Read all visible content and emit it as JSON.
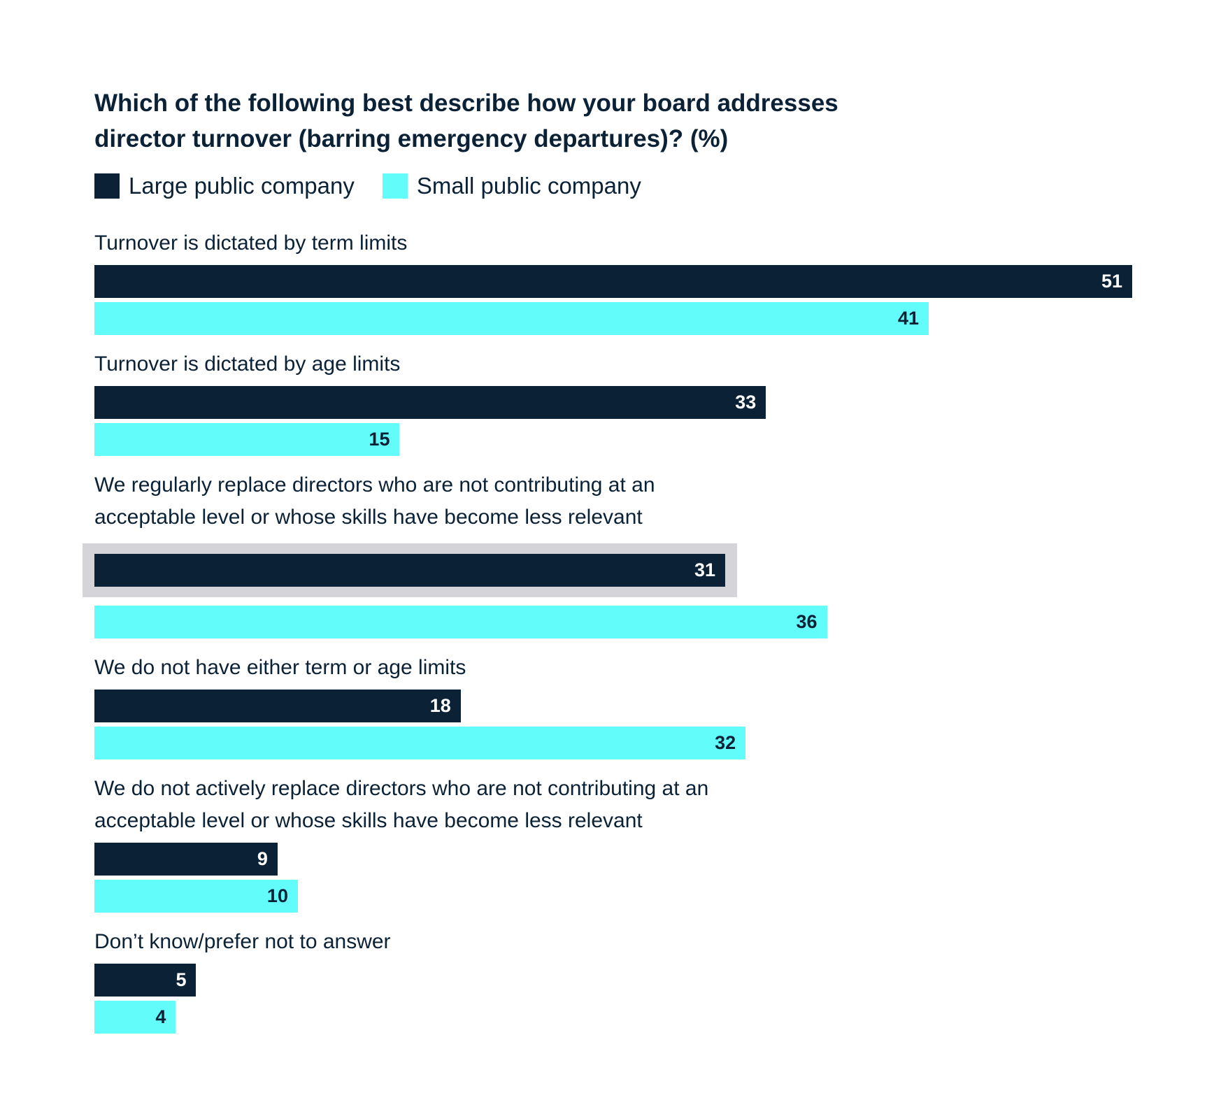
{
  "chart_data": {
    "type": "bar",
    "orientation": "horizontal",
    "title": "Which of the following best describe how your board addresses director turnover (barring emergency departures)? (%)",
    "title_lines": [
      "Which of the following best describe how your board addresses",
      "director turnover (barring emergency departures)? (%)"
    ],
    "xlim": [
      0,
      51
    ],
    "grid": false,
    "legend_position": "top-left",
    "categories": [
      "Turnover is dictated by term limits",
      "Turnover is dictated by age limits",
      "We regularly replace directors who are not contributing at an acceptable level or whose skills have become less relevant",
      "We do not have either term or age limits",
      "We do not actively replace directors who are not contributing at an acceptable level or whose skills have become less relevant",
      "Don’t know/prefer not to answer"
    ],
    "category_lines": [
      [
        "Turnover is dictated by term limits"
      ],
      [
        "Turnover is dictated by age limits"
      ],
      [
        "We regularly replace directors who are not contributing at an",
        "acceptable level or whose skills have become less relevant"
      ],
      [
        "We do not have either term or age limits"
      ],
      [
        "We do not actively replace directors who are not contributing at an",
        "acceptable level or whose skills have become less relevant"
      ],
      [
        "Don’t know/prefer not to answer"
      ]
    ],
    "series": [
      {
        "name": "Large public company",
        "color": "#0b2236",
        "label_color": "#ffffff",
        "values": [
          51,
          33,
          31,
          18,
          9,
          5
        ]
      },
      {
        "name": "Small public company",
        "color": "#62fcfb",
        "label_color": "#0b2236",
        "values": [
          41,
          15,
          36,
          32,
          10,
          4
        ]
      }
    ],
    "highlight": {
      "series": 0,
      "category": 2,
      "color": "#d4d4d9"
    }
  }
}
